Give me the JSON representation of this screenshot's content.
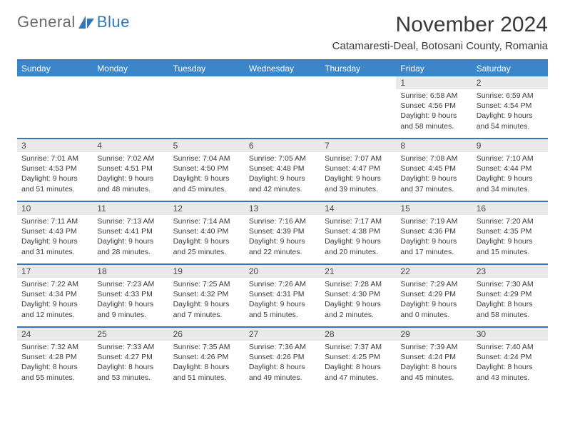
{
  "brand": {
    "general": "General",
    "blue": "Blue"
  },
  "title": "November 2024",
  "location": "Catamaresti-Deal, Botosani County, Romania",
  "colors": {
    "brand_blue": "#2f78bd",
    "header_blue": "#3a86c8",
    "band_gray": "#e9e9e9",
    "text": "#3a3a3a"
  },
  "weekdays": [
    "Sunday",
    "Monday",
    "Tuesday",
    "Wednesday",
    "Thursday",
    "Friday",
    "Saturday"
  ],
  "weeks": [
    [
      {
        "n": "",
        "sr": "",
        "ss": "",
        "dl": ""
      },
      {
        "n": "",
        "sr": "",
        "ss": "",
        "dl": ""
      },
      {
        "n": "",
        "sr": "",
        "ss": "",
        "dl": ""
      },
      {
        "n": "",
        "sr": "",
        "ss": "",
        "dl": ""
      },
      {
        "n": "",
        "sr": "",
        "ss": "",
        "dl": ""
      },
      {
        "n": "1",
        "sr": "Sunrise: 6:58 AM",
        "ss": "Sunset: 4:56 PM",
        "dl": "Daylight: 9 hours and 58 minutes."
      },
      {
        "n": "2",
        "sr": "Sunrise: 6:59 AM",
        "ss": "Sunset: 4:54 PM",
        "dl": "Daylight: 9 hours and 54 minutes."
      }
    ],
    [
      {
        "n": "3",
        "sr": "Sunrise: 7:01 AM",
        "ss": "Sunset: 4:53 PM",
        "dl": "Daylight: 9 hours and 51 minutes."
      },
      {
        "n": "4",
        "sr": "Sunrise: 7:02 AM",
        "ss": "Sunset: 4:51 PM",
        "dl": "Daylight: 9 hours and 48 minutes."
      },
      {
        "n": "5",
        "sr": "Sunrise: 7:04 AM",
        "ss": "Sunset: 4:50 PM",
        "dl": "Daylight: 9 hours and 45 minutes."
      },
      {
        "n": "6",
        "sr": "Sunrise: 7:05 AM",
        "ss": "Sunset: 4:48 PM",
        "dl": "Daylight: 9 hours and 42 minutes."
      },
      {
        "n": "7",
        "sr": "Sunrise: 7:07 AM",
        "ss": "Sunset: 4:47 PM",
        "dl": "Daylight: 9 hours and 39 minutes."
      },
      {
        "n": "8",
        "sr": "Sunrise: 7:08 AM",
        "ss": "Sunset: 4:45 PM",
        "dl": "Daylight: 9 hours and 37 minutes."
      },
      {
        "n": "9",
        "sr": "Sunrise: 7:10 AM",
        "ss": "Sunset: 4:44 PM",
        "dl": "Daylight: 9 hours and 34 minutes."
      }
    ],
    [
      {
        "n": "10",
        "sr": "Sunrise: 7:11 AM",
        "ss": "Sunset: 4:43 PM",
        "dl": "Daylight: 9 hours and 31 minutes."
      },
      {
        "n": "11",
        "sr": "Sunrise: 7:13 AM",
        "ss": "Sunset: 4:41 PM",
        "dl": "Daylight: 9 hours and 28 minutes."
      },
      {
        "n": "12",
        "sr": "Sunrise: 7:14 AM",
        "ss": "Sunset: 4:40 PM",
        "dl": "Daylight: 9 hours and 25 minutes."
      },
      {
        "n": "13",
        "sr": "Sunrise: 7:16 AM",
        "ss": "Sunset: 4:39 PM",
        "dl": "Daylight: 9 hours and 22 minutes."
      },
      {
        "n": "14",
        "sr": "Sunrise: 7:17 AM",
        "ss": "Sunset: 4:38 PM",
        "dl": "Daylight: 9 hours and 20 minutes."
      },
      {
        "n": "15",
        "sr": "Sunrise: 7:19 AM",
        "ss": "Sunset: 4:36 PM",
        "dl": "Daylight: 9 hours and 17 minutes."
      },
      {
        "n": "16",
        "sr": "Sunrise: 7:20 AM",
        "ss": "Sunset: 4:35 PM",
        "dl": "Daylight: 9 hours and 15 minutes."
      }
    ],
    [
      {
        "n": "17",
        "sr": "Sunrise: 7:22 AM",
        "ss": "Sunset: 4:34 PM",
        "dl": "Daylight: 9 hours and 12 minutes."
      },
      {
        "n": "18",
        "sr": "Sunrise: 7:23 AM",
        "ss": "Sunset: 4:33 PM",
        "dl": "Daylight: 9 hours and 9 minutes."
      },
      {
        "n": "19",
        "sr": "Sunrise: 7:25 AM",
        "ss": "Sunset: 4:32 PM",
        "dl": "Daylight: 9 hours and 7 minutes."
      },
      {
        "n": "20",
        "sr": "Sunrise: 7:26 AM",
        "ss": "Sunset: 4:31 PM",
        "dl": "Daylight: 9 hours and 5 minutes."
      },
      {
        "n": "21",
        "sr": "Sunrise: 7:28 AM",
        "ss": "Sunset: 4:30 PM",
        "dl": "Daylight: 9 hours and 2 minutes."
      },
      {
        "n": "22",
        "sr": "Sunrise: 7:29 AM",
        "ss": "Sunset: 4:29 PM",
        "dl": "Daylight: 9 hours and 0 minutes."
      },
      {
        "n": "23",
        "sr": "Sunrise: 7:30 AM",
        "ss": "Sunset: 4:29 PM",
        "dl": "Daylight: 8 hours and 58 minutes."
      }
    ],
    [
      {
        "n": "24",
        "sr": "Sunrise: 7:32 AM",
        "ss": "Sunset: 4:28 PM",
        "dl": "Daylight: 8 hours and 55 minutes."
      },
      {
        "n": "25",
        "sr": "Sunrise: 7:33 AM",
        "ss": "Sunset: 4:27 PM",
        "dl": "Daylight: 8 hours and 53 minutes."
      },
      {
        "n": "26",
        "sr": "Sunrise: 7:35 AM",
        "ss": "Sunset: 4:26 PM",
        "dl": "Daylight: 8 hours and 51 minutes."
      },
      {
        "n": "27",
        "sr": "Sunrise: 7:36 AM",
        "ss": "Sunset: 4:26 PM",
        "dl": "Daylight: 8 hours and 49 minutes."
      },
      {
        "n": "28",
        "sr": "Sunrise: 7:37 AM",
        "ss": "Sunset: 4:25 PM",
        "dl": "Daylight: 8 hours and 47 minutes."
      },
      {
        "n": "29",
        "sr": "Sunrise: 7:39 AM",
        "ss": "Sunset: 4:24 PM",
        "dl": "Daylight: 8 hours and 45 minutes."
      },
      {
        "n": "30",
        "sr": "Sunrise: 7:40 AM",
        "ss": "Sunset: 4:24 PM",
        "dl": "Daylight: 8 hours and 43 minutes."
      }
    ]
  ]
}
